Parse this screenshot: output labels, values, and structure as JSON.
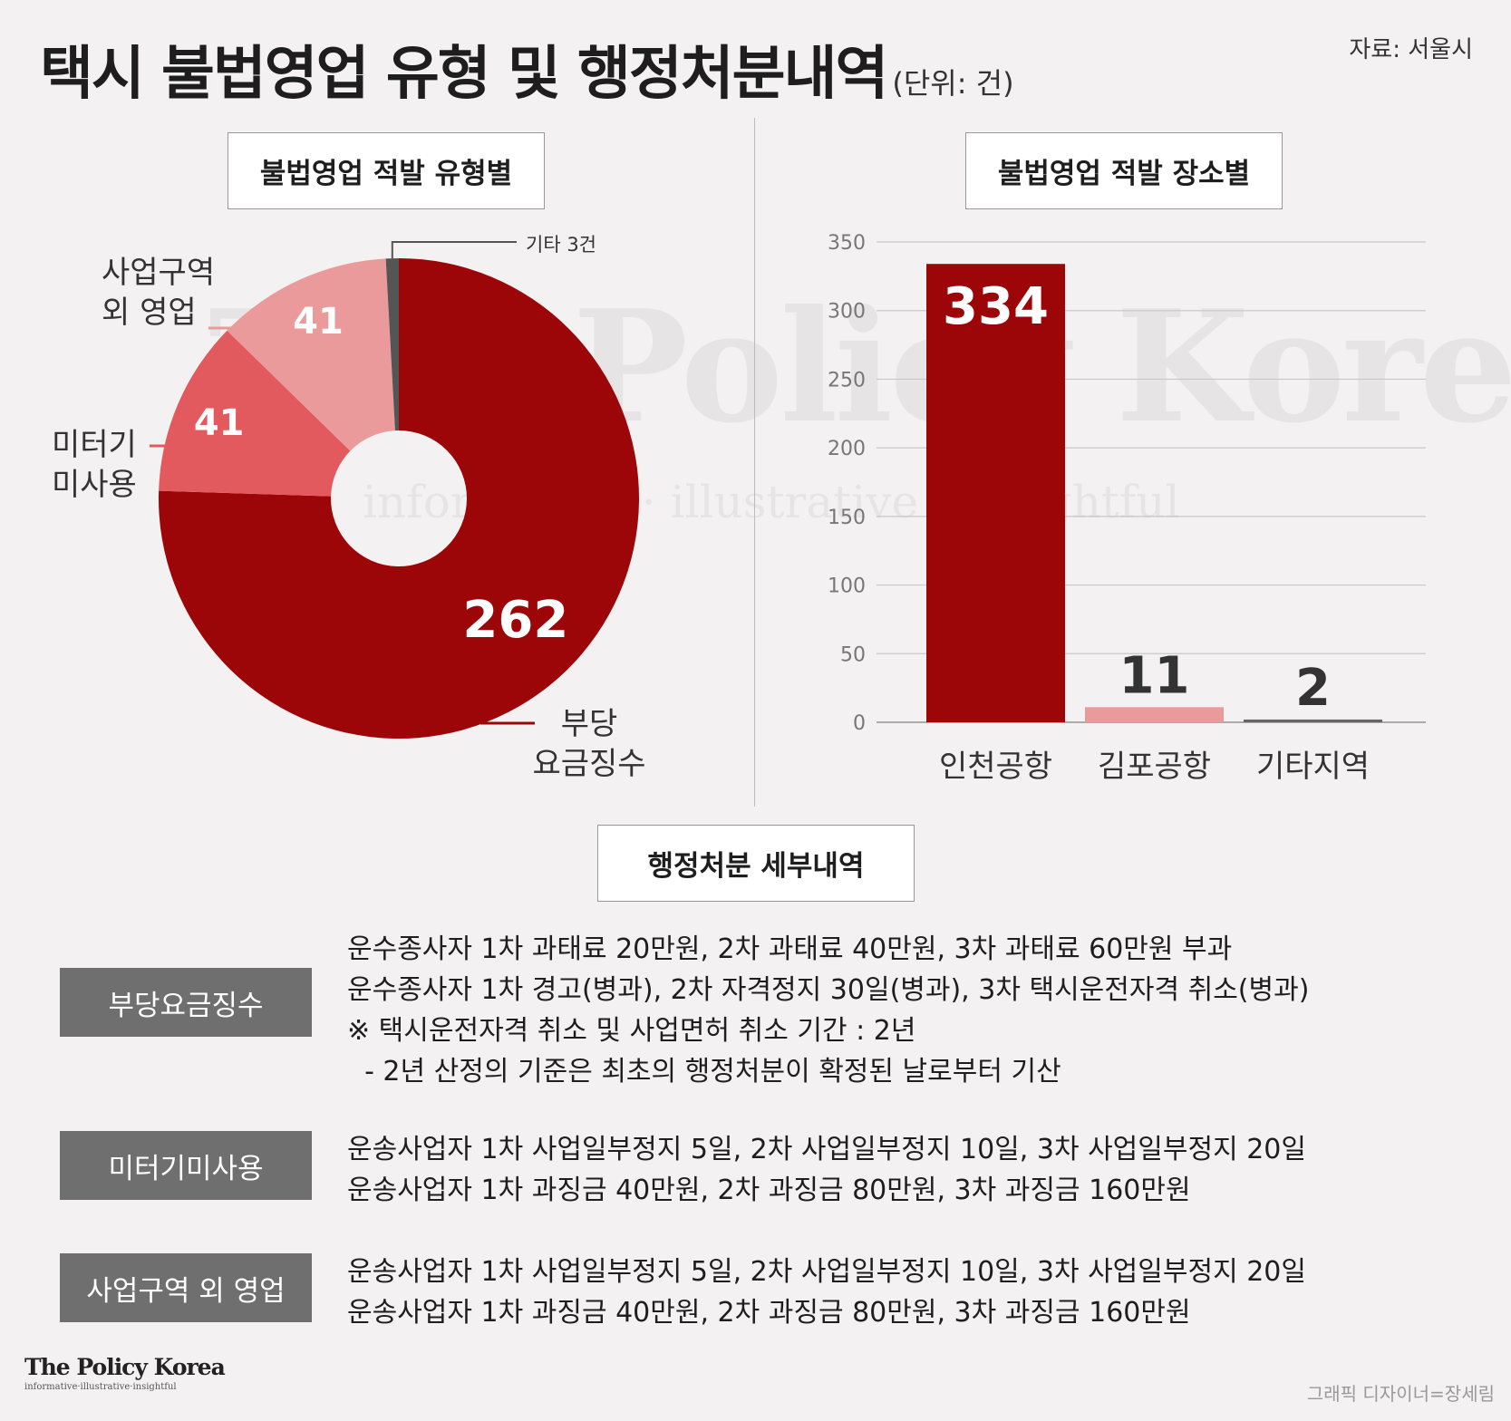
{
  "title": "택시 불법영업 유형 및 행정처분내역",
  "unit": "(단위: 건)",
  "source": "자료: 서울시",
  "watermark": {
    "main": "The Policy Korea",
    "sub": "informative · illustrative · insightful"
  },
  "donut": {
    "header": "불법영업 적발 유형별",
    "other_label": "기타 3건"
  },
  "bar": {
    "header": "불법영업 적발 장소별"
  },
  "chart_data": [
    {
      "type": "pie",
      "title": "불법영업 적발 유형별",
      "donut": true,
      "slices": [
        {
          "label": "부당 요금징수",
          "label_lines": [
            "부당",
            "요금징수"
          ],
          "value": 262,
          "value_label": "262",
          "color": "#9c0608"
        },
        {
          "label": "미터기 미사용",
          "label_lines": [
            "미터기",
            "미사용"
          ],
          "value": 41,
          "value_label": "41",
          "color": "#e25a5e"
        },
        {
          "label": "사업구역 외 영업",
          "label_lines": [
            "사업구역",
            "외 영업"
          ],
          "value": 41,
          "value_label": "41",
          "color": "#eb9a9c"
        },
        {
          "label": "기타",
          "value": 3,
          "value_label": "기타 3건",
          "color": "#555555"
        }
      ]
    },
    {
      "type": "bar",
      "title": "불법영업 적발 장소별",
      "categories": [
        "인천공항",
        "김포공항",
        "기타지역"
      ],
      "values": [
        334,
        11,
        2
      ],
      "value_labels": [
        "334",
        "11",
        "2"
      ],
      "colors": [
        "#9c0608",
        "#eb9a9c",
        "#666666"
      ],
      "ylim": [
        0,
        350
      ],
      "yticks": [
        0,
        50,
        100,
        150,
        200,
        250,
        300,
        350
      ],
      "ytick_labels": [
        "0",
        "50",
        "100",
        "150",
        "200",
        "250",
        "300",
        "350"
      ],
      "grid": true
    }
  ],
  "details": {
    "header": "행정처분 세부내역",
    "items": [
      {
        "category": "부당요금징수",
        "lines": [
          "운수종사자 1차 과태료 20만원, 2차 과태료 40만원, 3차 과태료 60만원 부과",
          "운수종사자 1차 경고(병과), 2차 자격정지 30일(병과), 3차 택시운전자격 취소(병과)",
          "※ 택시운전자격 취소 및 사업면허 취소 기간 : 2년",
          "  - 2년 산정의 기준은 최초의 행정처분이 확정된 날로부터 기산"
        ]
      },
      {
        "category": "미터기미사용",
        "lines": [
          "운송사업자 1차 사업일부정지 5일, 2차 사업일부정지 10일, 3차 사업일부정지 20일",
          "운송사업자 1차 과징금 40만원, 2차 과징금 80만원, 3차 과징금 160만원"
        ]
      },
      {
        "category": "사업구역 외 영업",
        "lines": [
          "운송사업자 1차 사업일부정지 5일, 2차 사업일부정지 10일, 3차 사업일부정지 20일",
          "운송사업자 1차 과징금 40만원, 2차 과징금 80만원, 3차 과징금 160만원"
        ]
      }
    ]
  },
  "logo": {
    "main": "The Policy Korea",
    "sub": "informative·illustrative·insightful"
  },
  "credit": "그래픽 디자이너=장세림"
}
